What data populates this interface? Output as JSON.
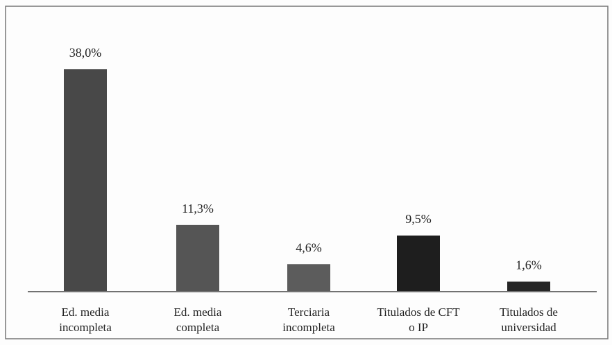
{
  "chart_data": {
    "type": "bar",
    "categories": [
      "Ed. media incompleta",
      "Ed. media completa",
      "Terciaria incompleta",
      "Titulados de CFT o IP",
      "Titulados de universidad"
    ],
    "values": [
      38.0,
      11.3,
      4.6,
      9.5,
      1.6
    ],
    "value_labels": [
      "38,0%",
      "11,3%",
      "4,6%",
      "9,5%",
      "1,6%"
    ],
    "colors": [
      "#484848",
      "#555555",
      "#5c5c5c",
      "#1e1e1e",
      "#262626"
    ]
  }
}
